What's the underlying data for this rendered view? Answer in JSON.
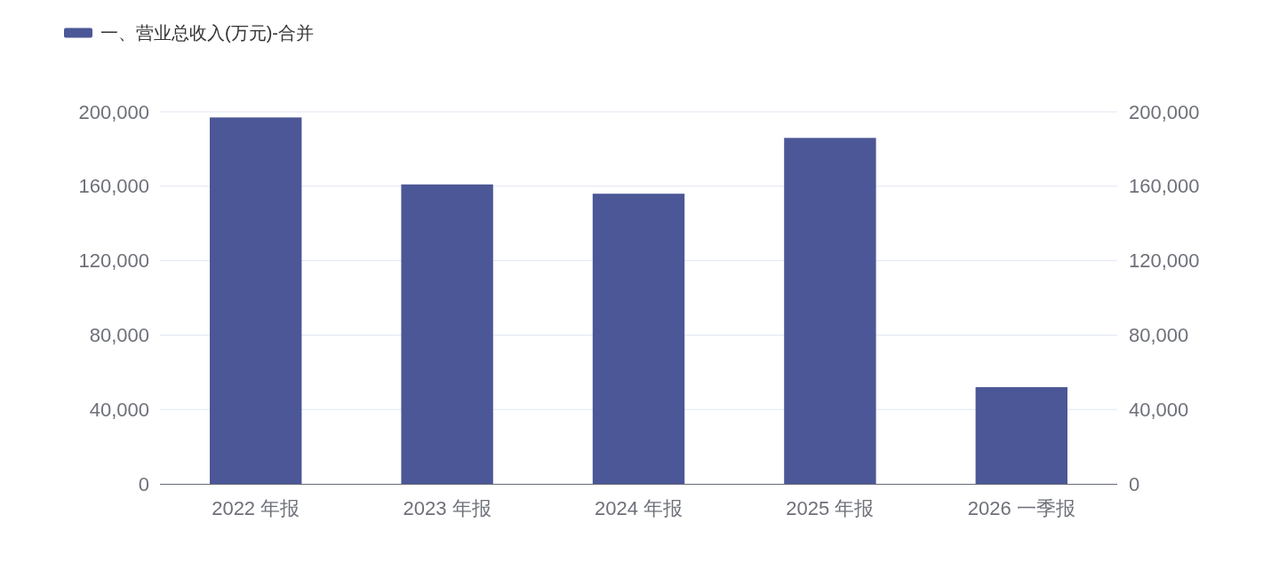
{
  "chart_data": {
    "type": "bar",
    "categories": [
      "2022 年报",
      "2023 年报",
      "2024 年报",
      "2025 年报",
      "2026 一季报"
    ],
    "series": [
      {
        "name": "一、营业总收入(万元)-合并",
        "color": "#4b5796",
        "values": [
          197000,
          161000,
          156000,
          186000,
          52000
        ]
      }
    ],
    "ylim": [
      0,
      200000
    ],
    "yticks": [
      {
        "value": 0,
        "label": "0"
      },
      {
        "value": 40000,
        "label": "40,000"
      },
      {
        "value": 80000,
        "label": "80,000"
      },
      {
        "value": 120000,
        "label": "120,000"
      },
      {
        "value": 160000,
        "label": "160,000"
      },
      {
        "value": 200000,
        "label": "200,000"
      }
    ],
    "y2lim": [
      0,
      200000
    ],
    "y2ticks": [
      {
        "value": 0,
        "label": "0"
      },
      {
        "value": 40000,
        "label": "40,000"
      },
      {
        "value": 80000,
        "label": "80,000"
      },
      {
        "value": 120000,
        "label": "120,000"
      },
      {
        "value": 160000,
        "label": "160,000"
      },
      {
        "value": 200000,
        "label": "200,000"
      }
    ],
    "grid": "y",
    "legend": "top left"
  }
}
